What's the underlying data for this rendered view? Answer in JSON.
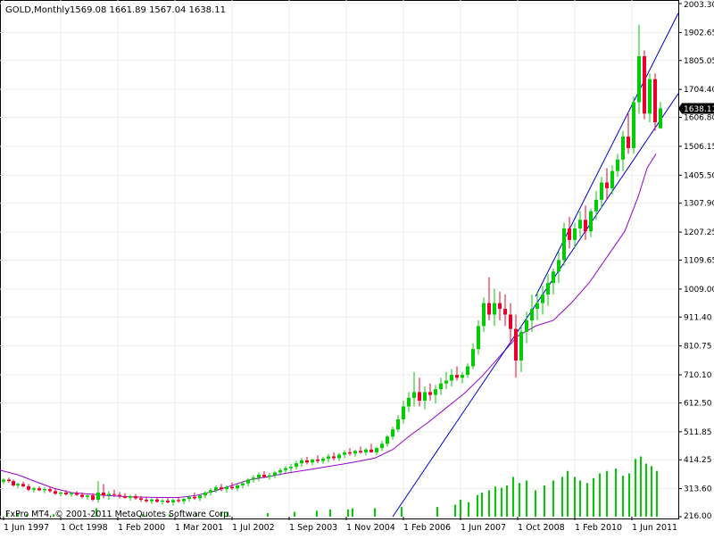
{
  "header": {
    "symbol": "GOLD,Monthly",
    "ohlc": "1569.08 1661.89 1567.04 1638.11"
  },
  "footer": {
    "copyright": "FxPro MT4, © 2001-2011 MetaQuotes Software Corp."
  },
  "chart_data": {
    "type": "candlestick",
    "y_axis": {
      "range": [
        216.0,
        2003.3
      ],
      "ticks": [
        "2003.30",
        "1902.65",
        "1805.05",
        "1704.40",
        "1606.80",
        "1506.15",
        "1405.50",
        "1307.90",
        "1207.25",
        "1109.65",
        "1009.00",
        "911.40",
        "810.75",
        "710.10",
        "612.50",
        "511.85",
        "414.25",
        "313.60",
        "216.00"
      ]
    },
    "x_axis": {
      "labels": [
        "1 Jun 1997",
        "1 Oct 1998",
        "1 Feb 2000",
        "1 Mar 2001",
        "1 Jul 2002",
        "1 Sep 2003",
        "1 Nov 2004",
        "1 Feb 2006",
        "1 Jun 2007",
        "1 Oct 2008",
        "1 Feb 2010",
        "1 Jun 2011"
      ]
    },
    "current_price": "1638.11",
    "moving_average": {
      "color": "#9900cc",
      "points": [
        [
          0,
          378
        ],
        [
          20,
          362
        ],
        [
          40,
          338
        ],
        [
          60,
          315
        ],
        [
          80,
          300
        ],
        [
          100,
          295
        ],
        [
          120,
          290
        ],
        [
          140,
          286
        ],
        [
          160,
          284
        ],
        [
          180,
          283
        ],
        [
          200,
          283
        ],
        [
          220,
          290
        ],
        [
          240,
          305
        ],
        [
          260,
          325
        ],
        [
          280,
          345
        ],
        [
          300,
          355
        ],
        [
          320,
          367
        ],
        [
          340,
          377
        ],
        [
          360,
          387
        ],
        [
          380,
          397
        ],
        [
          400,
          408
        ],
        [
          420,
          420
        ],
        [
          440,
          450
        ],
        [
          460,
          500
        ],
        [
          480,
          545
        ],
        [
          500,
          595
        ],
        [
          520,
          645
        ],
        [
          540,
          705
        ],
        [
          560,
          775
        ],
        [
          580,
          845
        ],
        [
          600,
          880
        ],
        [
          620,
          900
        ],
        [
          640,
          960
        ],
        [
          660,
          1030
        ],
        [
          680,
          1120
        ],
        [
          700,
          1210
        ],
        [
          715,
          1330
        ],
        [
          725,
          1430
        ],
        [
          735,
          1480
        ]
      ]
    },
    "channel": {
      "color": "#0000cc",
      "upper_line": [
        [
          600,
          983
        ],
        [
          760,
          1970
        ]
      ],
      "lower_line": [
        [
          440,
          216
        ],
        [
          760,
          1690
        ]
      ]
    },
    "volume": {
      "color": "#00cc00",
      "bars": [
        [
          8,
          3
        ],
        [
          20,
          3
        ],
        [
          30,
          2
        ],
        [
          60,
          2
        ],
        [
          108,
          7
        ],
        [
          160,
          2
        ],
        [
          190,
          2
        ],
        [
          220,
          3
        ],
        [
          248,
          4
        ],
        [
          255,
          4
        ],
        [
          300,
          3
        ],
        [
          330,
          4
        ],
        [
          355,
          5
        ],
        [
          370,
          6
        ],
        [
          390,
          6
        ],
        [
          395,
          7
        ],
        [
          420,
          7
        ],
        [
          450,
          8
        ],
        [
          490,
          8
        ],
        [
          510,
          10
        ],
        [
          516,
          14
        ],
        [
          525,
          12
        ],
        [
          535,
          18
        ],
        [
          540,
          20
        ],
        [
          548,
          22
        ],
        [
          555,
          25
        ],
        [
          562,
          24
        ],
        [
          568,
          26
        ],
        [
          575,
          33
        ],
        [
          582,
          28
        ],
        [
          590,
          30
        ],
        [
          600,
          22
        ],
        [
          610,
          26
        ],
        [
          620,
          30
        ],
        [
          630,
          33
        ],
        [
          636,
          38
        ],
        [
          644,
          33
        ],
        [
          650,
          30
        ],
        [
          658,
          28
        ],
        [
          665,
          32
        ],
        [
          672,
          36
        ],
        [
          680,
          38
        ],
        [
          690,
          40
        ],
        [
          698,
          34
        ],
        [
          705,
          36
        ],
        [
          712,
          48
        ],
        [
          718,
          50
        ],
        [
          724,
          44
        ],
        [
          730,
          42
        ],
        [
          736,
          38
        ]
      ]
    },
    "candles": [
      [
        4,
        338,
        350,
        330,
        345
      ],
      [
        10,
        345,
        352,
        335,
        340
      ],
      [
        15,
        340,
        345,
        320,
        325
      ],
      [
        20,
        325,
        335,
        315,
        330
      ],
      [
        26,
        330,
        338,
        318,
        322
      ],
      [
        32,
        322,
        330,
        305,
        310
      ],
      [
        38,
        310,
        320,
        300,
        315
      ],
      [
        44,
        315,
        322,
        305,
        308
      ],
      [
        50,
        308,
        318,
        298,
        312
      ],
      [
        56,
        312,
        320,
        300,
        305
      ],
      [
        62,
        305,
        312,
        292,
        296
      ],
      [
        68,
        296,
        305,
        288,
        300
      ],
      [
        74,
        300,
        308,
        290,
        294
      ],
      [
        80,
        294,
        302,
        285,
        298
      ],
      [
        86,
        298,
        305,
        288,
        292
      ],
      [
        92,
        292,
        300,
        280,
        285
      ],
      [
        98,
        285,
        293,
        275,
        290
      ],
      [
        104,
        290,
        298,
        270,
        275
      ],
      [
        110,
        275,
        340,
        265,
        300
      ],
      [
        116,
        300,
        330,
        280,
        290
      ],
      [
        122,
        290,
        305,
        275,
        295
      ],
      [
        128,
        295,
        310,
        285,
        292
      ],
      [
        134,
        292,
        302,
        280,
        288
      ],
      [
        140,
        288,
        298,
        278,
        282
      ],
      [
        146,
        282,
        292,
        272,
        287
      ],
      [
        152,
        287,
        295,
        275,
        280
      ],
      [
        158,
        280,
        288,
        268,
        275
      ],
      [
        164,
        275,
        285,
        265,
        270
      ],
      [
        170,
        270,
        280,
        260,
        276
      ],
      [
        176,
        276,
        285,
        265,
        268
      ],
      [
        182,
        268,
        278,
        258,
        272
      ],
      [
        188,
        272,
        282,
        262,
        266
      ],
      [
        194,
        266,
        278,
        255,
        274
      ],
      [
        200,
        274,
        285,
        265,
        270
      ],
      [
        206,
        270,
        282,
        260,
        278
      ],
      [
        212,
        278,
        290,
        268,
        285
      ],
      [
        218,
        285,
        300,
        275,
        280
      ],
      [
        224,
        280,
        292,
        270,
        290
      ],
      [
        230,
        290,
        305,
        280,
        300
      ],
      [
        236,
        300,
        315,
        290,
        308
      ],
      [
        242,
        308,
        325,
        300,
        318
      ],
      [
        248,
        318,
        330,
        305,
        312
      ],
      [
        254,
        312,
        325,
        300,
        320
      ],
      [
        260,
        320,
        335,
        310,
        315
      ],
      [
        266,
        315,
        330,
        305,
        325
      ],
      [
        272,
        325,
        340,
        315,
        332
      ],
      [
        278,
        332,
        350,
        322,
        345
      ],
      [
        284,
        345,
        360,
        335,
        352
      ],
      [
        290,
        352,
        370,
        340,
        362
      ],
      [
        296,
        362,
        375,
        350,
        355
      ],
      [
        302,
        355,
        368,
        345,
        360
      ],
      [
        308,
        360,
        375,
        350,
        370
      ],
      [
        314,
        370,
        385,
        360,
        378
      ],
      [
        320,
        378,
        392,
        368,
        385
      ],
      [
        326,
        385,
        400,
        372,
        390
      ],
      [
        332,
        390,
        410,
        380,
        402
      ],
      [
        338,
        402,
        420,
        390,
        412
      ],
      [
        344,
        412,
        425,
        398,
        405
      ],
      [
        350,
        405,
        418,
        395,
        415
      ],
      [
        356,
        415,
        430,
        402,
        410
      ],
      [
        362,
        410,
        425,
        400,
        418
      ],
      [
        368,
        418,
        435,
        405,
        426
      ],
      [
        374,
        426,
        440,
        412,
        420
      ],
      [
        380,
        420,
        438,
        410,
        432
      ],
      [
        386,
        432,
        448,
        420,
        440
      ],
      [
        392,
        440,
        455,
        428,
        436
      ],
      [
        398,
        436,
        450,
        425,
        445
      ],
      [
        404,
        445,
        460,
        435,
        440
      ],
      [
        410,
        440,
        455,
        430,
        450
      ],
      [
        416,
        450,
        470,
        440,
        440
      ],
      [
        422,
        440,
        460,
        430,
        455
      ],
      [
        428,
        455,
        480,
        445,
        470
      ],
      [
        434,
        470,
        500,
        460,
        495
      ],
      [
        440,
        495,
        530,
        485,
        520
      ],
      [
        446,
        520,
        570,
        510,
        555
      ],
      [
        452,
        555,
        620,
        540,
        600
      ],
      [
        458,
        600,
        650,
        580,
        630
      ],
      [
        464,
        630,
        720,
        600,
        650
      ],
      [
        470,
        650,
        700,
        600,
        620
      ],
      [
        476,
        620,
        670,
        590,
        650
      ],
      [
        482,
        650,
        680,
        620,
        640
      ],
      [
        488,
        640,
        675,
        610,
        660
      ],
      [
        494,
        660,
        700,
        640,
        680
      ],
      [
        500,
        680,
        720,
        660,
        690
      ],
      [
        506,
        690,
        730,
        670,
        710
      ],
      [
        512,
        710,
        740,
        690,
        700
      ],
      [
        518,
        700,
        720,
        680,
        710
      ],
      [
        524,
        710,
        750,
        700,
        740
      ],
      [
        530,
        740,
        820,
        730,
        800
      ],
      [
        536,
        800,
        900,
        780,
        880
      ],
      [
        542,
        880,
        980,
        860,
        960
      ],
      [
        548,
        960,
        1050,
        900,
        920
      ],
      [
        554,
        920,
        1010,
        880,
        960
      ],
      [
        560,
        960,
        1000,
        900,
        940
      ],
      [
        566,
        940,
        990,
        880,
        920
      ],
      [
        572,
        920,
        960,
        820,
        870
      ],
      [
        578,
        870,
        920,
        700,
        760
      ],
      [
        584,
        760,
        880,
        720,
        860
      ],
      [
        590,
        860,
        930,
        820,
        900
      ],
      [
        596,
        900,
        990,
        860,
        940
      ],
      [
        602,
        940,
        1000,
        900,
        960
      ],
      [
        608,
        960,
        1020,
        920,
        990
      ],
      [
        614,
        990,
        1060,
        950,
        1030
      ],
      [
        620,
        1030,
        1080,
        990,
        1070
      ],
      [
        626,
        1070,
        1140,
        1030,
        1110
      ],
      [
        632,
        1110,
        1240,
        1090,
        1220
      ],
      [
        638,
        1220,
        1260,
        1150,
        1180
      ],
      [
        644,
        1180,
        1240,
        1150,
        1220
      ],
      [
        650,
        1220,
        1280,
        1190,
        1250
      ],
      [
        656,
        1250,
        1300,
        1180,
        1210
      ],
      [
        662,
        1210,
        1290,
        1190,
        1280
      ],
      [
        668,
        1280,
        1350,
        1250,
        1320
      ],
      [
        674,
        1320,
        1400,
        1290,
        1380
      ],
      [
        680,
        1380,
        1430,
        1320,
        1360
      ],
      [
        686,
        1360,
        1440,
        1340,
        1420
      ],
      [
        692,
        1420,
        1480,
        1400,
        1460
      ],
      [
        698,
        1460,
        1560,
        1420,
        1540
      ],
      [
        704,
        1540,
        1620,
        1480,
        1500
      ],
      [
        710,
        1500,
        1680,
        1480,
        1660
      ],
      [
        716,
        1660,
        1930,
        1620,
        1820
      ],
      [
        722,
        1820,
        1840,
        1600,
        1620
      ],
      [
        728,
        1620,
        1760,
        1590,
        1740
      ],
      [
        734,
        1740,
        1760,
        1560,
        1590
      ],
      [
        740,
        1569,
        1661,
        1567,
        1638
      ]
    ]
  }
}
